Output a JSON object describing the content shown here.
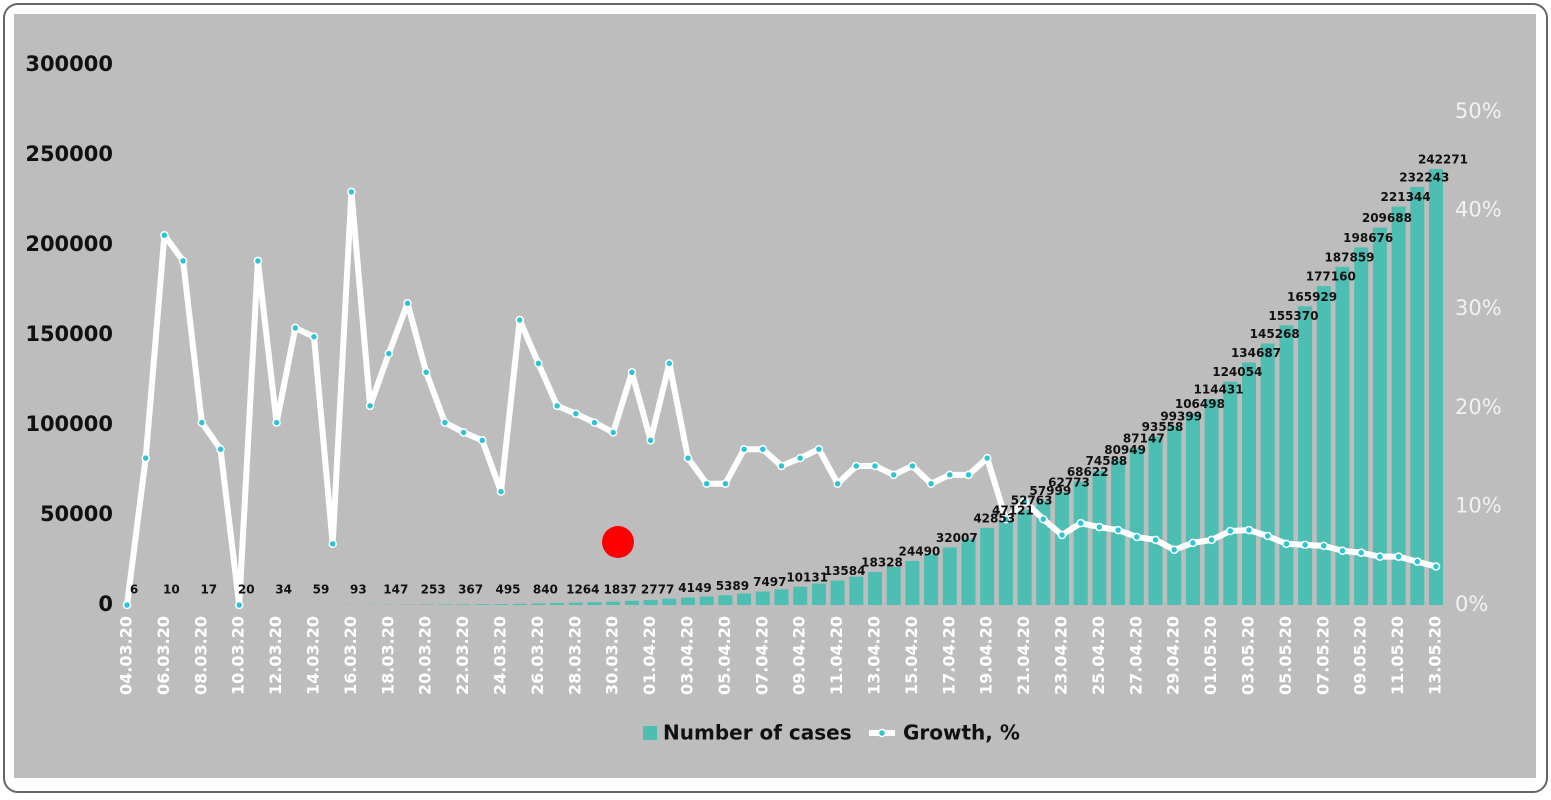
{
  "chart_data": {
    "type": "combo",
    "categories": [
      "04.03.20",
      null,
      "06.03.20",
      null,
      "08.03.20",
      null,
      "10.03.20",
      null,
      "12.03.20",
      null,
      "14.03.20",
      null,
      "16.03.20",
      null,
      "18.03.20",
      null,
      "20.03.20",
      null,
      "22.03.20",
      null,
      "24.03.20",
      null,
      "26.03.20",
      null,
      "28.03.20",
      null,
      "30.03.20",
      null,
      "01.04.20",
      null,
      "03.04.20",
      null,
      "05.04.20",
      null,
      "07.04.20",
      null,
      "09.04.20",
      null,
      "11.04.20",
      null,
      "13.04.20",
      null,
      "15.04.20",
      null,
      "17.04.20",
      null,
      "19.04.20",
      null,
      "21.04.20",
      null,
      "23.04.20",
      null,
      "25.04.20",
      null,
      "27.04.20",
      null,
      "29.04.20",
      null,
      "01.05.20",
      null,
      "03.05.20",
      null,
      "05.05.20",
      null,
      "07.05.20",
      null,
      "09.05.20",
      null,
      "11.05.20",
      null,
      "13.05.20"
    ],
    "series": [
      {
        "name": "Number of cases",
        "type": "bar",
        "color": "#4dbfb2",
        "values": [
          6,
          7,
          10,
          14,
          17,
          17,
          20,
          28,
          34,
          45,
          59,
          63,
          93,
          114,
          147,
          199,
          253,
          306,
          367,
          438,
          495,
          658,
          840,
          1036,
          1264,
          1534,
          1837,
          2337,
          2777,
          3548,
          4149,
          4731,
          5389,
          6343,
          7497,
          8672,
          10131,
          11917,
          13584,
          15770,
          18328,
          21102,
          24490,
          27938,
          32007,
          36793,
          42853,
          47121,
          52763,
          57999,
          62773,
          68622,
          74588,
          80949,
          87147,
          93558,
          99399,
          106498,
          114431,
          124054,
          134687,
          145268,
          155370,
          165929,
          177160,
          187859,
          198676,
          209688,
          221344,
          232243,
          242271
        ],
        "value_labels": [
          "6",
          null,
          "10",
          null,
          "17",
          null,
          "20",
          null,
          "34",
          null,
          "59",
          null,
          "93",
          null,
          "147",
          null,
          "253",
          null,
          "367",
          null,
          "495",
          null,
          "840",
          null,
          "1264",
          null,
          "1837",
          null,
          "2777",
          null,
          "4149",
          null,
          "5389",
          null,
          "7497",
          null,
          "10131",
          null,
          "13584",
          null,
          "18328",
          null,
          "24490",
          null,
          "32007",
          null,
          "42853",
          "47121",
          "52763",
          "57999",
          "62773",
          "68622",
          "74588",
          "80949",
          "87147",
          "93558",
          "99399",
          "106498",
          "114431",
          "124054",
          "134687",
          "145268",
          "155370",
          "165929",
          "177160",
          "187859",
          "198676",
          "209688",
          "221344",
          "232243",
          "242271"
        ]
      },
      {
        "name": "Growth, %",
        "type": "line",
        "axis": "y2",
        "color": "#ffffff",
        "marker_color": "#2ec4d2",
        "values": [
          0,
          14.9,
          37.5,
          34.9,
          18.5,
          15.8,
          0,
          34.9,
          18.5,
          28.1,
          27.2,
          6.2,
          41.9,
          20.2,
          25.5,
          30.6,
          23.6,
          18.5,
          17.5,
          16.7,
          11.5,
          28.9,
          24.5,
          20.2,
          19.4,
          18.5,
          17.5,
          23.6,
          16.7,
          24.5,
          14.9,
          12.3,
          12.3,
          15.8,
          15.8,
          14.1,
          14.9,
          15.8,
          12.3,
          14.1,
          14.1,
          13.2,
          14.1,
          12.3,
          13.2,
          13.2,
          14.9,
          8.7,
          10.5,
          8.7,
          7.1,
          8.3,
          7.9,
          7.6,
          6.9,
          6.6,
          5.6,
          6.3,
          6.6,
          7.5,
          7.6,
          7.0,
          6.2,
          6.1,
          6.0,
          5.5,
          5.3,
          4.9,
          4.9,
          4.4,
          3.9
        ]
      }
    ],
    "ylim": [
      0,
      300000
    ],
    "yticks": [
      0,
      50000,
      100000,
      150000,
      200000,
      250000,
      300000
    ],
    "y2lim": [
      0,
      50
    ],
    "y2ticks": [
      {
        "value": 0,
        "label": "0%"
      },
      {
        "value": 10,
        "label": "10%"
      },
      {
        "value": 20,
        "label": "20%"
      },
      {
        "value": 30,
        "label": "30%"
      },
      {
        "value": 40,
        "label": "40%"
      },
      {
        "value": 50,
        "label": "50%"
      }
    ],
    "legend": "bottom"
  }
}
